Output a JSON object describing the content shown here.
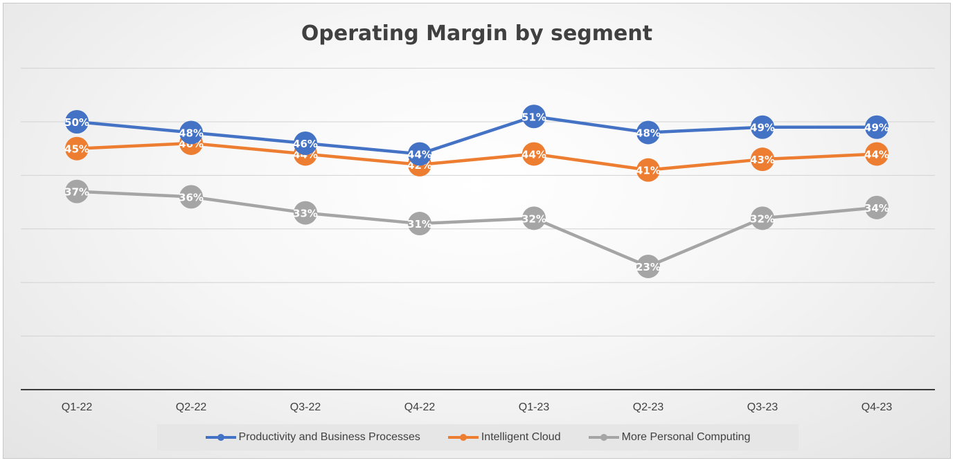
{
  "chart_data": {
    "type": "line",
    "title": "Operating Margin by segment",
    "xlabel": "",
    "ylabel": "",
    "categories": [
      "Q1-22",
      "Q2-22",
      "Q3-22",
      "Q4-22",
      "Q1-23",
      "Q2-23",
      "Q3-23",
      "Q4-23"
    ],
    "ylim": [
      0,
      60
    ],
    "grid": true,
    "legend_position": "bottom",
    "series": [
      {
        "name": "Productivity and Business Processes",
        "color": "#4472C4",
        "values": [
          50,
          48,
          46,
          44,
          51,
          48,
          49,
          49
        ],
        "labels": [
          "50%",
          "48%",
          "46%",
          "44%",
          "51%",
          "48%",
          "49%",
          "49%"
        ]
      },
      {
        "name": "Intelligent Cloud",
        "color": "#ED7D31",
        "values": [
          45,
          46,
          44,
          42,
          44,
          41,
          43,
          44
        ],
        "labels": [
          "45%",
          "46%",
          "44%",
          "42%",
          "44%",
          "41%",
          "43%",
          "44%"
        ]
      },
      {
        "name": "More Personal Computing",
        "color": "#A5A5A5",
        "values": [
          37,
          36,
          33,
          31,
          32,
          23,
          32,
          34
        ],
        "labels": [
          "37%",
          "36%",
          "33%",
          "31%",
          "32%",
          "23%",
          "32%",
          "34%"
        ]
      }
    ]
  }
}
